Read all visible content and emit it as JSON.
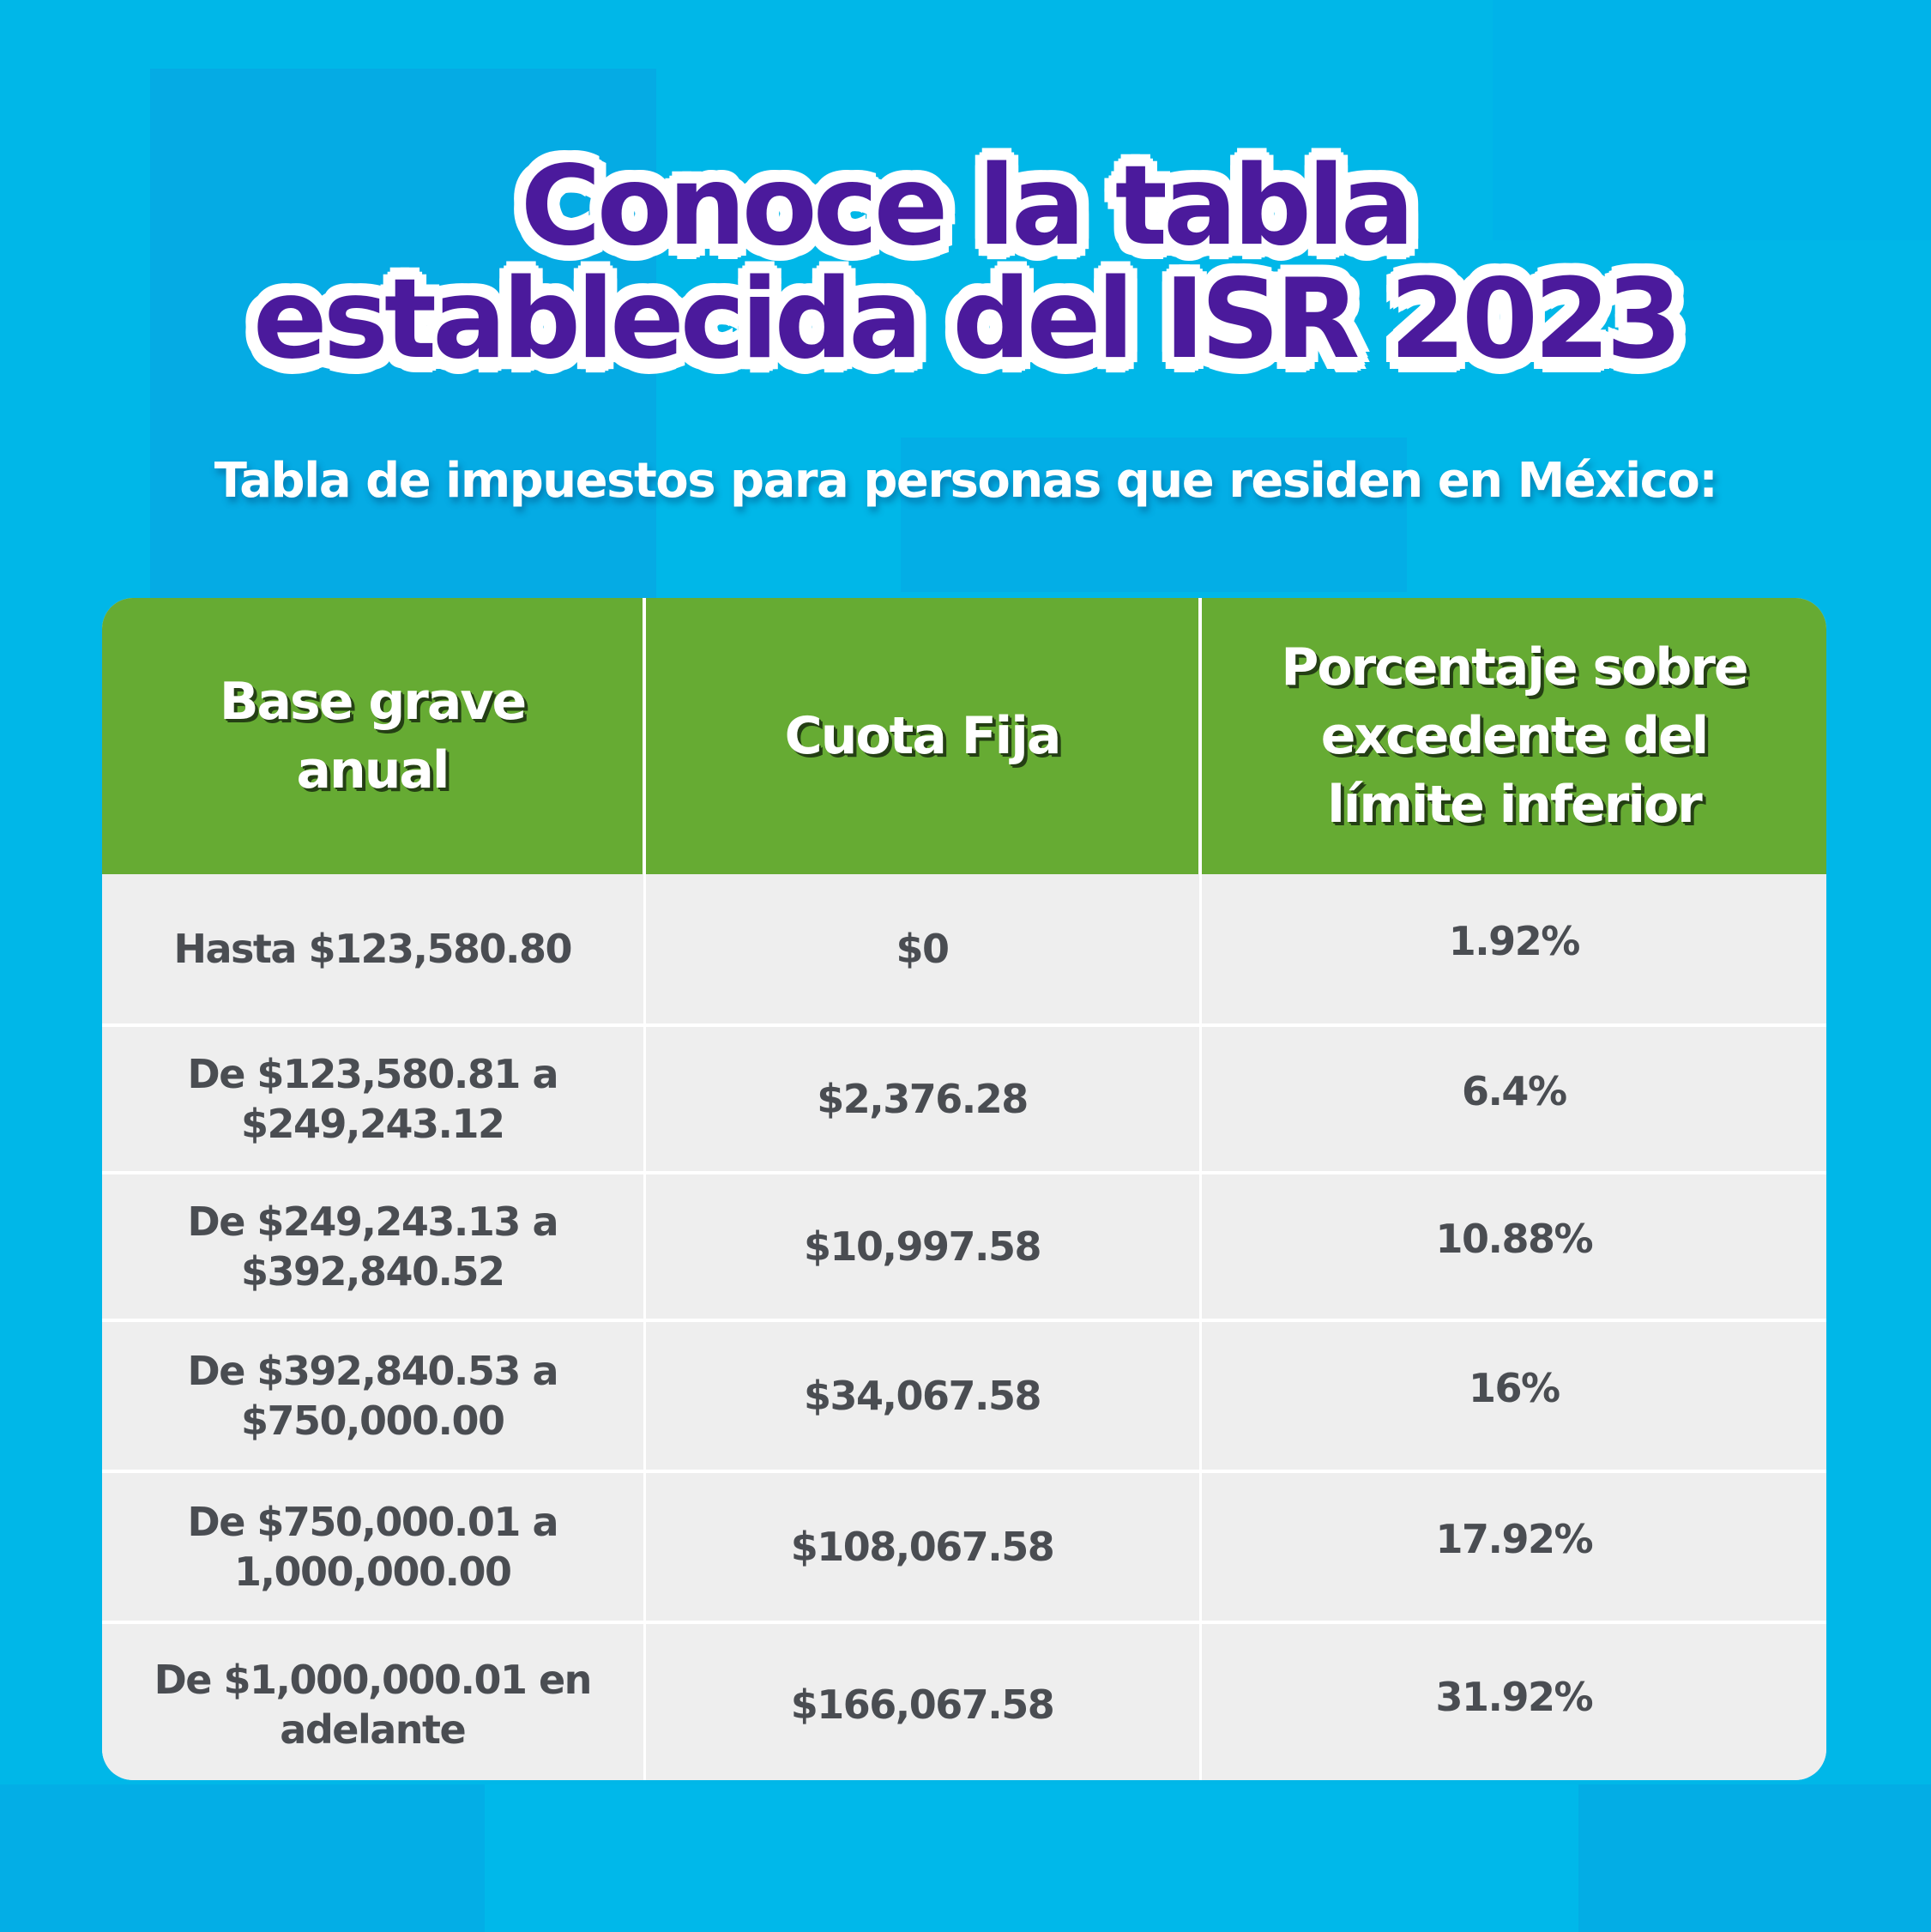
{
  "title": {
    "line1": "Conoce la tabla",
    "line2": "establecida del ISR 2023"
  },
  "subtitle": "Tabla de impuestos para personas que residen en México:",
  "colors": {
    "background": "#00b7e8",
    "title_text": "#4b1a9c",
    "title_outline": "#ffffff",
    "header_bg": "#66ab33",
    "header_text": "#ffffff",
    "cell_bg": "#eeeeee",
    "cell_text": "#4a4d52"
  },
  "table": {
    "headers": [
      {
        "lines": [
          "Base grave",
          "anual"
        ]
      },
      {
        "lines": [
          "Cuota Fija"
        ]
      },
      {
        "lines": [
          "Porcentaje sobre",
          "excedente del",
          "límite inferior"
        ]
      }
    ],
    "rows": [
      {
        "base": [
          "Hasta $123,580.80"
        ],
        "cuota_fija": "$0",
        "porcentaje": "1.92%"
      },
      {
        "base": [
          "De $123,580.81 a",
          "$249,243.12"
        ],
        "cuota_fija": "$2,376.28",
        "porcentaje": "6.4%"
      },
      {
        "base": [
          "De $249,243.13 a",
          "$392,840.52"
        ],
        "cuota_fija": "$10,997.58",
        "porcentaje": "10.88%"
      },
      {
        "base": [
          "De $392,840.53 a",
          "$750,000.00"
        ],
        "cuota_fija": "$34,067.58",
        "porcentaje": "16%"
      },
      {
        "base": [
          "De $750,000.01 a",
          "1,000,000.00"
        ],
        "cuota_fija": "$108,067.58",
        "porcentaje": "17.92%"
      },
      {
        "base": [
          "De $1,000,000.01 en",
          "adelante"
        ],
        "cuota_fija": "$166,067.58",
        "porcentaje": "31.92%"
      }
    ]
  }
}
